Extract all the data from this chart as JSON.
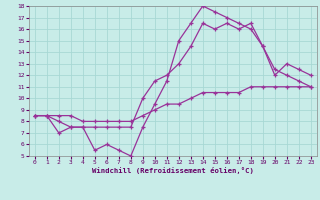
{
  "xlabel": "Windchill (Refroidissement éolien,°C)",
  "bg_color": "#c8ece8",
  "grid_color": "#a8d8d4",
  "line_color": "#993399",
  "xlim": [
    -0.5,
    23.5
  ],
  "ylim": [
    5,
    18
  ],
  "xticks": [
    0,
    1,
    2,
    3,
    4,
    5,
    6,
    7,
    8,
    9,
    10,
    11,
    12,
    13,
    14,
    15,
    16,
    17,
    18,
    19,
    20,
    21,
    22,
    23
  ],
  "yticks": [
    5,
    6,
    7,
    8,
    9,
    10,
    11,
    12,
    13,
    14,
    15,
    16,
    17,
    18
  ],
  "line1_x": [
    0,
    1,
    2,
    3,
    4,
    5,
    6,
    7,
    8,
    9,
    10,
    11,
    12,
    13,
    14,
    15,
    16,
    17,
    18,
    19,
    20,
    21,
    22,
    23
  ],
  "line1_y": [
    8.5,
    8.5,
    8.5,
    8.5,
    8.0,
    8.0,
    8.0,
    8.0,
    8.0,
    8.5,
    9.0,
    9.5,
    9.5,
    10.0,
    10.5,
    10.5,
    10.5,
    10.5,
    11.0,
    11.0,
    11.0,
    11.0,
    11.0,
    11.0
  ],
  "line2_x": [
    0,
    1,
    2,
    3,
    4,
    5,
    6,
    7,
    8,
    9,
    10,
    11,
    12,
    13,
    14,
    15,
    16,
    17,
    18,
    19,
    20,
    21,
    22,
    23
  ],
  "line2_y": [
    8.5,
    8.5,
    7.0,
    7.5,
    7.5,
    5.5,
    6.0,
    5.5,
    5.0,
    7.5,
    9.5,
    11.5,
    15.0,
    16.5,
    18.0,
    17.5,
    17.0,
    16.5,
    16.0,
    14.5,
    12.5,
    12.0,
    11.5,
    11.0
  ],
  "line3_x": [
    0,
    1,
    2,
    3,
    4,
    5,
    6,
    7,
    8,
    9,
    10,
    11,
    12,
    13,
    14,
    15,
    16,
    17,
    18,
    19,
    20,
    21,
    22,
    23
  ],
  "line3_y": [
    8.5,
    8.5,
    8.0,
    7.5,
    7.5,
    7.5,
    7.5,
    7.5,
    7.5,
    10.0,
    11.5,
    12.0,
    13.0,
    14.5,
    16.5,
    16.0,
    16.5,
    16.0,
    16.5,
    14.5,
    12.0,
    13.0,
    12.5,
    12.0
  ]
}
